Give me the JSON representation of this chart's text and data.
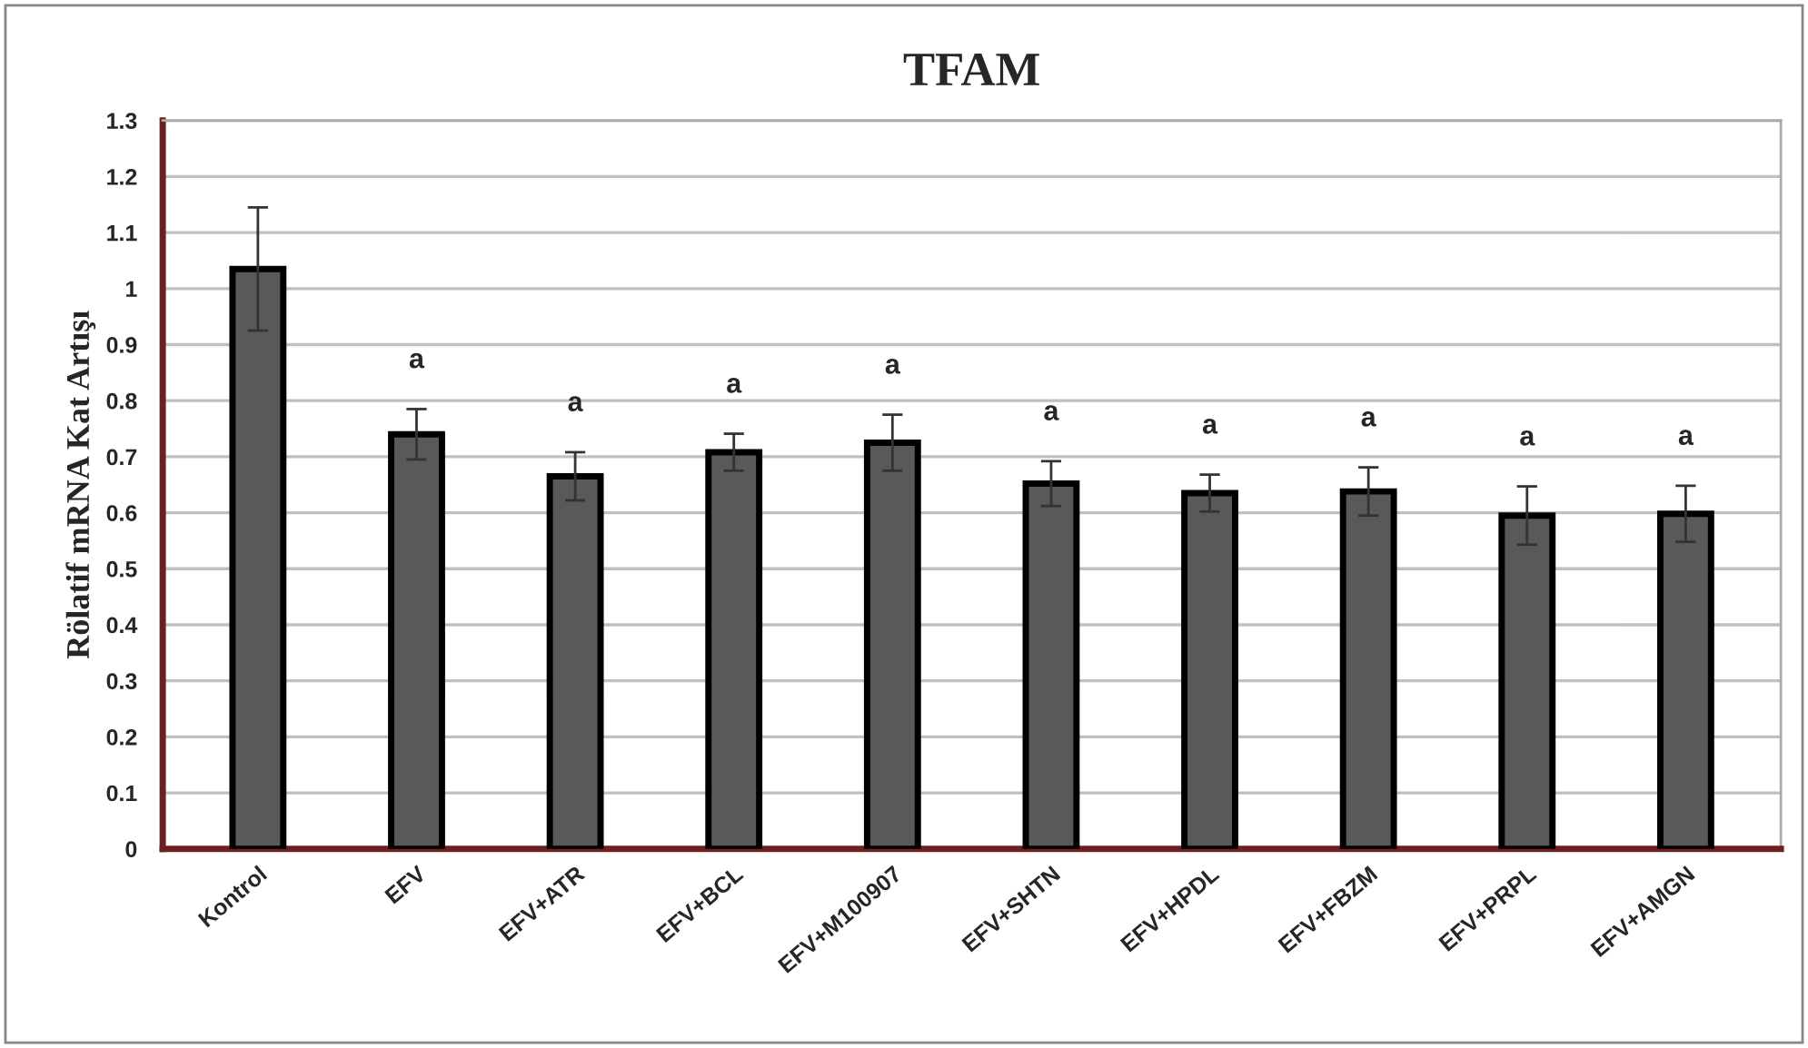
{
  "chart_data": {
    "type": "bar",
    "title": "TFAM",
    "ylabel": "Rölatif mRNA Kat Artışı",
    "categories": [
      "Kontrol",
      "EFV",
      "EFV+ATR",
      "EFV+BCL",
      "EFV+M100907",
      "EFV+SHTN",
      "EFV+HPDL",
      "EFV+FBZM",
      "EFV+PRPL",
      "EFV+AMGN"
    ],
    "values": [
      1.035,
      0.74,
      0.665,
      0.708,
      0.725,
      0.652,
      0.635,
      0.638,
      0.595,
      0.598
    ],
    "errors": [
      0.11,
      0.045,
      0.043,
      0.033,
      0.05,
      0.04,
      0.033,
      0.043,
      0.052,
      0.05
    ],
    "color": "#595959",
    "annotations": [
      {
        "text": "a",
        "x": "EFV",
        "y": 0.74
      },
      {
        "text": "a",
        "x": "EFV+ATR",
        "y": 0.665
      },
      {
        "text": "a",
        "x": "EFV+BCL",
        "y": 0.708
      },
      {
        "text": "a",
        "x": "EFV+M100907",
        "y": 0.725
      },
      {
        "text": "a",
        "x": "EFV+SHTN",
        "y": 0.652
      },
      {
        "text": "a",
        "x": "EFV+HPDL",
        "y": 0.635
      },
      {
        "text": "a",
        "x": "EFV+FBZM",
        "y": 0.638
      },
      {
        "text": "a",
        "x": "EFV+PRPL",
        "y": 0.595
      },
      {
        "text": "a",
        "x": "EFV+AMGN",
        "y": 0.598
      }
    ],
    "ylim": [
      0,
      1.3
    ],
    "yticks": [
      0,
      {
        "value": 0.1,
        "label": "0.1"
      },
      {
        "value": 0.2,
        "label": "0.2"
      },
      {
        "value": 0.3,
        "label": "0.3"
      },
      {
        "value": 0.4,
        "label": "0.4"
      },
      {
        "value": 0.5,
        "label": "0.5"
      },
      {
        "value": 0.6,
        "label": "0.6"
      },
      {
        "value": 0.7,
        "label": "0.7"
      },
      {
        "value": 0.8,
        "label": "0.8"
      },
      {
        "value": 0.9,
        "label": "0.9"
      },
      1,
      {
        "value": 1.1,
        "label": "1.1"
      },
      {
        "value": 1.2,
        "label": "1.2"
      },
      {
        "value": 1.3,
        "label": "1.3"
      }
    ],
    "grid": "y"
  }
}
